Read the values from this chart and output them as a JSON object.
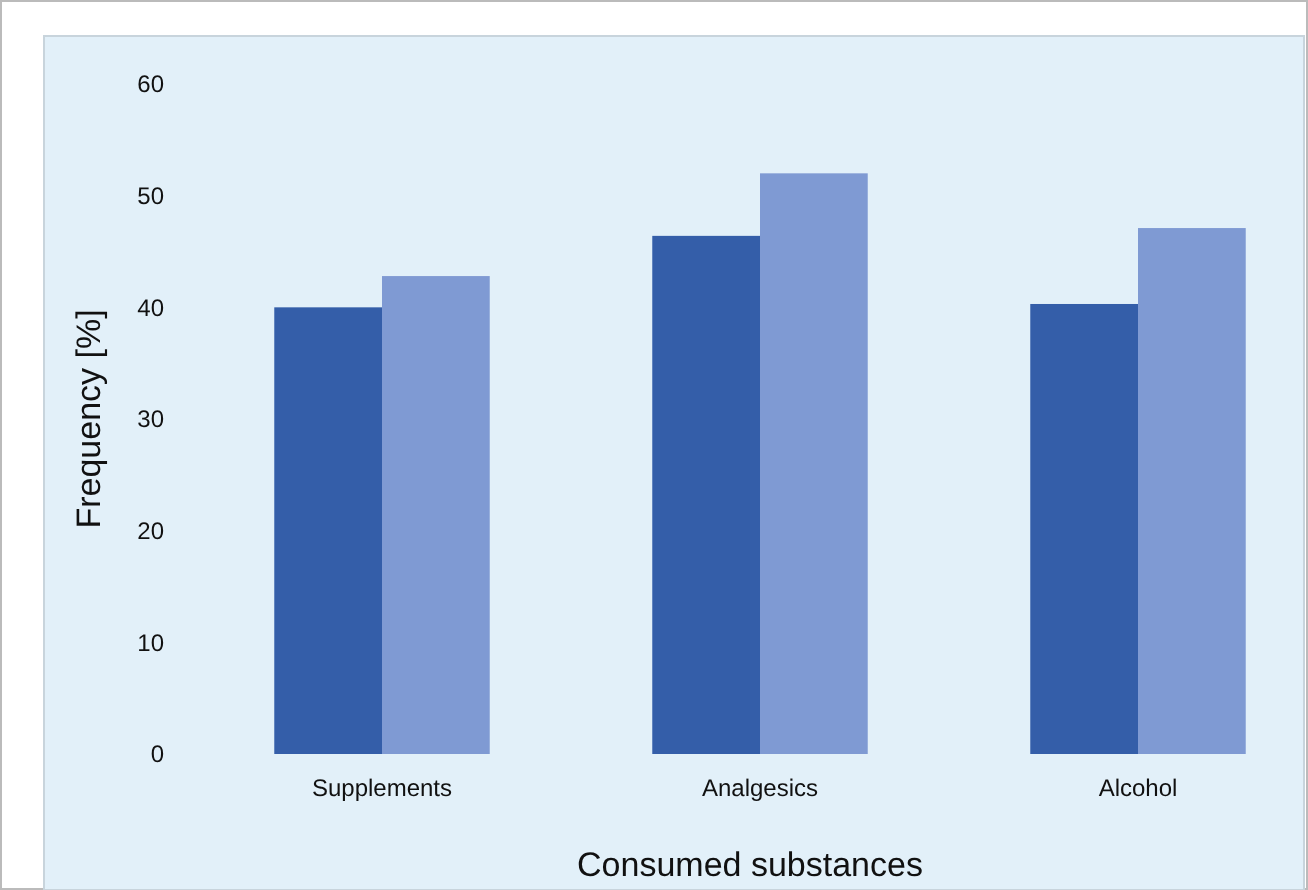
{
  "chart_data": {
    "type": "bar",
    "xlabel": "Consumed substances",
    "ylabel": "Frequency [%]",
    "categories": [
      "Supplements",
      "Analgesics",
      "Alcohol"
    ],
    "series": [
      {
        "color": "#345ea9",
        "values": [
          40.0,
          46.4,
          40.3
        ]
      },
      {
        "color": "#7f9ad3",
        "values": [
          42.8,
          52.0,
          47.1
        ]
      }
    ],
    "ylim": [
      0,
      60
    ],
    "yticks": [
      0,
      10,
      20,
      30,
      40,
      50,
      60
    ],
    "grid": false
  }
}
